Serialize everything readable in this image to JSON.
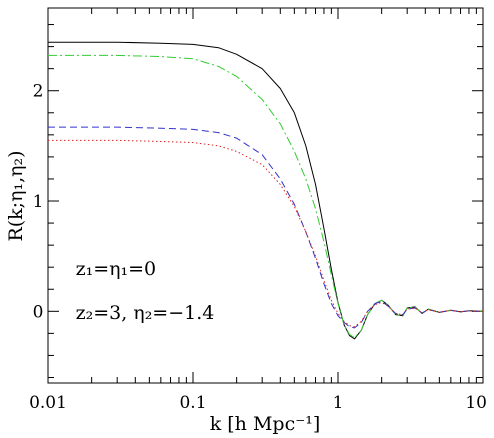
{
  "chart_data": {
    "type": "line",
    "title": "",
    "xlabel": "k [h Mpc⁻¹]",
    "ylabel": "R(k;η₁,η₂)",
    "xscale": "log",
    "xlim": [
      0.01,
      10
    ],
    "ylim": [
      -0.65,
      2.75
    ],
    "x_ticks": [
      {
        "value": 0.01,
        "label": "0.01"
      },
      {
        "value": 0.1,
        "label": "0.1"
      },
      {
        "value": 1,
        "label": "1"
      },
      {
        "value": 10,
        "label": "10"
      }
    ],
    "y_ticks": [
      {
        "value": 0,
        "label": "0"
      },
      {
        "value": 1,
        "label": "1"
      },
      {
        "value": 2,
        "label": "2"
      }
    ],
    "grid": false,
    "annotations": [
      {
        "text": "z₁=η₁=0",
        "x": 0.0155,
        "y": 0.33
      },
      {
        "text": "z₂=3,  η₂=−1.4",
        "x": 0.0155,
        "y": -0.07
      }
    ],
    "series": [
      {
        "style": "solid",
        "color": "#000000",
        "points": [
          [
            0.01,
            2.44
          ],
          [
            0.03,
            2.44
          ],
          [
            0.06,
            2.43
          ],
          [
            0.1,
            2.42
          ],
          [
            0.15,
            2.39
          ],
          [
            0.2,
            2.33
          ],
          [
            0.3,
            2.2
          ],
          [
            0.4,
            2.02
          ],
          [
            0.5,
            1.8
          ],
          [
            0.6,
            1.5
          ],
          [
            0.7,
            1.15
          ],
          [
            0.8,
            0.75
          ],
          [
            0.9,
            0.38
          ],
          [
            1.0,
            0.08
          ],
          [
            1.1,
            -0.12
          ],
          [
            1.2,
            -0.22
          ],
          [
            1.3,
            -0.25
          ],
          [
            1.45,
            -0.17
          ],
          [
            1.6,
            -0.03
          ],
          [
            1.8,
            0.07
          ],
          [
            2.0,
            0.1
          ],
          [
            2.2,
            0.06
          ],
          [
            2.5,
            -0.03
          ],
          [
            2.8,
            -0.04
          ],
          [
            3.0,
            0.03
          ],
          [
            3.4,
            0.04
          ],
          [
            3.8,
            -0.02
          ],
          [
            4.2,
            0.02
          ],
          [
            5,
            -0.01
          ],
          [
            6,
            0.01
          ],
          [
            7,
            -0.005
          ],
          [
            8,
            0.005
          ],
          [
            10,
            0.0
          ]
        ]
      },
      {
        "style": "dash-dot",
        "color": "#33cc33",
        "points": [
          [
            0.01,
            2.32
          ],
          [
            0.03,
            2.32
          ],
          [
            0.06,
            2.31
          ],
          [
            0.1,
            2.29
          ],
          [
            0.15,
            2.22
          ],
          [
            0.2,
            2.13
          ],
          [
            0.3,
            1.92
          ],
          [
            0.4,
            1.7
          ],
          [
            0.5,
            1.45
          ],
          [
            0.6,
            1.2
          ],
          [
            0.7,
            0.93
          ],
          [
            0.8,
            0.63
          ],
          [
            0.9,
            0.33
          ],
          [
            1.0,
            0.07
          ],
          [
            1.1,
            -0.12
          ],
          [
            1.2,
            -0.21
          ],
          [
            1.3,
            -0.24
          ],
          [
            1.45,
            -0.17
          ],
          [
            1.6,
            -0.03
          ],
          [
            1.8,
            0.07
          ],
          [
            2.0,
            0.1
          ],
          [
            2.2,
            0.06
          ],
          [
            2.5,
            -0.03
          ],
          [
            2.8,
            -0.04
          ],
          [
            3.0,
            0.03
          ],
          [
            3.4,
            0.04
          ],
          [
            3.8,
            -0.02
          ],
          [
            4.2,
            0.02
          ],
          [
            5,
            -0.01
          ],
          [
            6,
            0.01
          ],
          [
            7,
            -0.005
          ],
          [
            8,
            0.005
          ],
          [
            10,
            0.0
          ]
        ]
      },
      {
        "style": "dashed",
        "color": "#3333cc",
        "points": [
          [
            0.01,
            1.67
          ],
          [
            0.03,
            1.67
          ],
          [
            0.06,
            1.66
          ],
          [
            0.1,
            1.65
          ],
          [
            0.15,
            1.62
          ],
          [
            0.2,
            1.57
          ],
          [
            0.3,
            1.42
          ],
          [
            0.4,
            1.2
          ],
          [
            0.5,
            0.97
          ],
          [
            0.6,
            0.72
          ],
          [
            0.7,
            0.48
          ],
          [
            0.8,
            0.25
          ],
          [
            0.9,
            0.07
          ],
          [
            1.0,
            -0.04
          ],
          [
            1.1,
            -0.1
          ],
          [
            1.2,
            -0.14
          ],
          [
            1.3,
            -0.15
          ],
          [
            1.45,
            -0.1
          ],
          [
            1.6,
            0.0
          ],
          [
            1.8,
            0.07
          ],
          [
            2.0,
            0.09
          ],
          [
            2.2,
            0.05
          ],
          [
            2.5,
            -0.02
          ],
          [
            2.8,
            -0.03
          ],
          [
            3.0,
            0.02
          ],
          [
            3.4,
            0.03
          ],
          [
            3.8,
            -0.015
          ],
          [
            4.2,
            0.015
          ],
          [
            5,
            -0.008
          ],
          [
            6,
            0.008
          ],
          [
            7,
            -0.004
          ],
          [
            8,
            0.004
          ],
          [
            10,
            0.0
          ]
        ]
      },
      {
        "style": "dotted",
        "color": "#dd2222",
        "points": [
          [
            0.01,
            1.55
          ],
          [
            0.03,
            1.55
          ],
          [
            0.06,
            1.54
          ],
          [
            0.1,
            1.53
          ],
          [
            0.15,
            1.5
          ],
          [
            0.2,
            1.45
          ],
          [
            0.3,
            1.33
          ],
          [
            0.4,
            1.15
          ],
          [
            0.5,
            0.95
          ],
          [
            0.6,
            0.72
          ],
          [
            0.7,
            0.5
          ],
          [
            0.8,
            0.28
          ],
          [
            0.9,
            0.1
          ],
          [
            1.0,
            -0.02
          ],
          [
            1.1,
            -0.09
          ],
          [
            1.2,
            -0.13
          ],
          [
            1.3,
            -0.14
          ],
          [
            1.45,
            -0.09
          ],
          [
            1.6,
            0.0
          ],
          [
            1.8,
            0.06
          ],
          [
            2.0,
            0.08
          ],
          [
            2.2,
            0.05
          ],
          [
            2.5,
            -0.02
          ],
          [
            2.8,
            -0.03
          ],
          [
            3.0,
            0.02
          ],
          [
            3.4,
            0.03
          ],
          [
            3.8,
            -0.015
          ],
          [
            4.2,
            0.015
          ],
          [
            5,
            -0.008
          ],
          [
            6,
            0.008
          ],
          [
            7,
            -0.004
          ],
          [
            8,
            0.004
          ],
          [
            10,
            0.0
          ]
        ]
      }
    ]
  }
}
